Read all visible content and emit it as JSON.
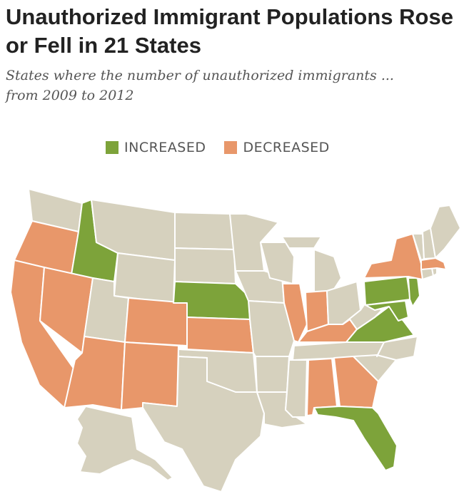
{
  "title": "Unauthorized Immigrant Populations Rose or Fell in 21 States",
  "subtitle": "States where the number of unauthorized immigrants ... from 2009 to 2012",
  "legend": {
    "increased": {
      "label": "INCREASED",
      "color": "#7da33a"
    },
    "decreased": {
      "label": "DECREASED",
      "color": "#e8976a"
    }
  },
  "map": {
    "neutral_color": "#d6d1be",
    "increased_states": [
      "Idaho",
      "Nebraska",
      "Pennsylvania",
      "New Jersey",
      "Maryland",
      "Virginia",
      "Florida"
    ],
    "decreased_states": [
      "Oregon",
      "California",
      "Nevada",
      "Arizona",
      "Colorado",
      "New Mexico",
      "Kansas",
      "Illinois",
      "Indiana",
      "Kentucky",
      "Alabama",
      "Georgia",
      "New York",
      "Massachusetts"
    ]
  }
}
